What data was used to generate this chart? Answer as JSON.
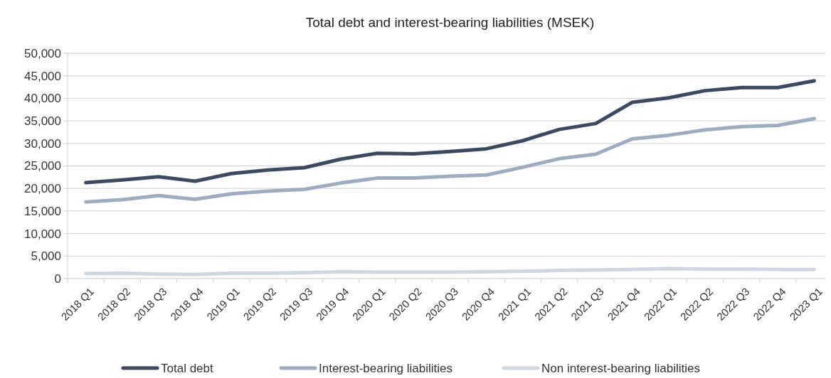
{
  "chart_data": {
    "type": "line",
    "title": "Total debt and interest-bearing liabilities (MSEK)",
    "categories": [
      "2018 Q1",
      "2018 Q2",
      "2018 Q3",
      "2018 Q4",
      "2019 Q1",
      "2019 Q2",
      "2019 Q3",
      "2019 Q4",
      "2020 Q1",
      "2020 Q2",
      "2020 Q3",
      "2020 Q4",
      "2021 Q1",
      "2021 Q2",
      "2021 Q3",
      "2021 Q4",
      "2022 Q1",
      "2022 Q2",
      "2022 Q3",
      "2022 Q4",
      "2023 Q1"
    ],
    "series": [
      {
        "name": "Total debt",
        "color": "#3b4a60",
        "values": [
          21300,
          21900,
          22600,
          21600,
          23300,
          24100,
          24600,
          26500,
          27800,
          27700,
          28200,
          28800,
          30600,
          33100,
          34400,
          39100,
          40100,
          41700,
          42400,
          42400,
          43900
        ]
      },
      {
        "name": "Interest-bearing liabilities",
        "color": "#9eacc2",
        "values": [
          17000,
          17500,
          18400,
          17600,
          18800,
          19400,
          19800,
          21200,
          22300,
          22300,
          22700,
          23000,
          24700,
          26600,
          27600,
          31000,
          31800,
          33000,
          33700,
          34000,
          35500
        ]
      },
      {
        "name": "Non interest-bearing liabilities",
        "color": "#d0d6df",
        "values": [
          1100,
          1200,
          1000,
          900,
          1200,
          1200,
          1300,
          1500,
          1400,
          1400,
          1400,
          1500,
          1600,
          1800,
          1900,
          2000,
          2200,
          2100,
          2100,
          2000,
          2000
        ]
      }
    ],
    "ylim": [
      0,
      50000
    ],
    "yticks": [
      {
        "value": 0,
        "label": "0"
      },
      {
        "value": 5000,
        "label": "5,000"
      },
      {
        "value": 10000,
        "label": "10,000"
      },
      {
        "value": 15000,
        "label": "15,000"
      },
      {
        "value": 20000,
        "label": "20,000"
      },
      {
        "value": 25000,
        "label": "25,000"
      },
      {
        "value": 30000,
        "label": "30,000"
      },
      {
        "value": 35000,
        "label": "35,000"
      },
      {
        "value": 40000,
        "label": "40,000"
      },
      {
        "value": 45000,
        "label": "45,000"
      },
      {
        "value": 50000,
        "label": "50,000"
      }
    ],
    "grid": "y",
    "legend": "bottom",
    "marker": "none",
    "line_style": "solid"
  }
}
